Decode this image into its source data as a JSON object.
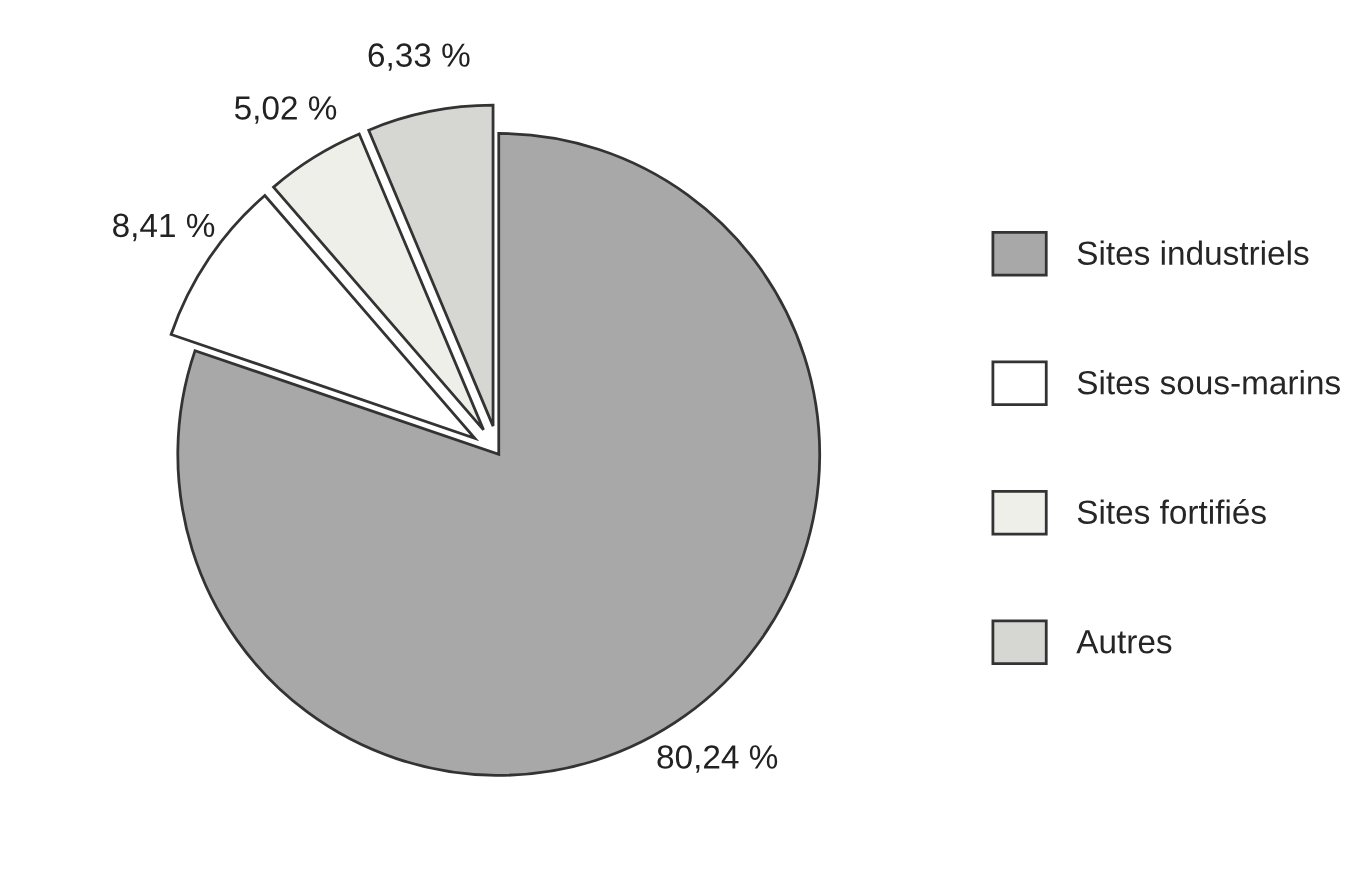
{
  "chart_data": {
    "type": "pie",
    "categories": [
      "Sites industriels",
      "Sites sous-marins",
      "Sites fortifiés",
      "Autres"
    ],
    "values": [
      80.24,
      8.41,
      5.02,
      6.33
    ],
    "value_labels": [
      "80,24 %",
      "8,41 %",
      "5,02 %",
      "6,33 %"
    ],
    "colors": [
      "#a8a8a8",
      "#ffffff",
      "#efefea",
      "#d6d6d2"
    ],
    "legend": "right"
  }
}
